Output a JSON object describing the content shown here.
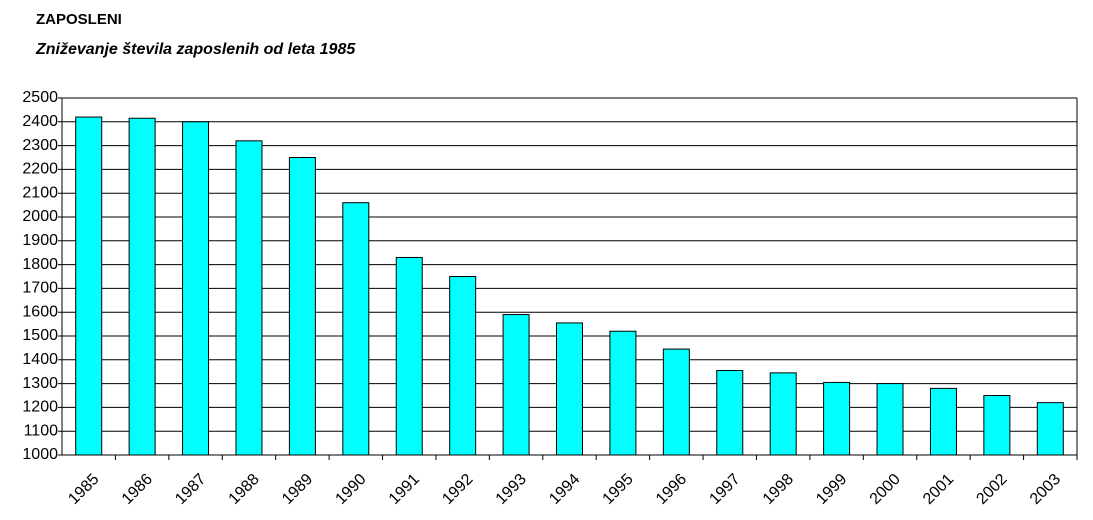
{
  "chart_data": {
    "type": "bar",
    "title": "ZAPOSLENI",
    "subtitle": "Zniževanje števila zaposlenih od leta 1985",
    "categories": [
      "1985",
      "1986",
      "1987",
      "1988",
      "1989",
      "1990",
      "1991",
      "1992",
      "1993",
      "1994",
      "1995",
      "1996",
      "1997",
      "1998",
      "1999",
      "2000",
      "2001",
      "2002",
      "2003"
    ],
    "values": [
      2420,
      2415,
      2400,
      2320,
      2250,
      2060,
      1830,
      1750,
      1590,
      1555,
      1520,
      1445,
      1355,
      1345,
      1305,
      1300,
      1280,
      1250,
      1220
    ],
    "color": "#00ffff",
    "ylim": [
      1000,
      2500
    ],
    "yticks": [
      1000,
      1100,
      1200,
      1300,
      1400,
      1500,
      1600,
      1700,
      1800,
      1900,
      2000,
      2100,
      2200,
      2300,
      2400,
      2500
    ],
    "grid": true
  }
}
